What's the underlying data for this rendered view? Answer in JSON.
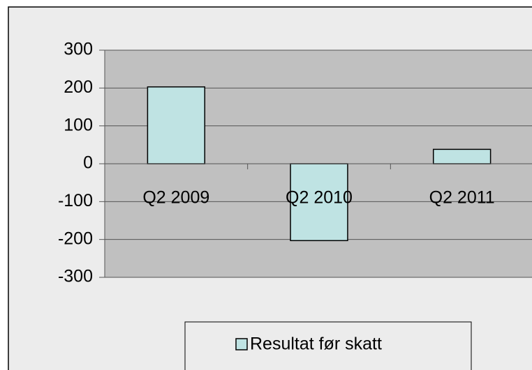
{
  "chart_data": {
    "type": "bar",
    "categories": [
      "Q2 2009",
      "Q2 2010",
      "Q2 2011"
    ],
    "series": [
      {
        "name": "Resultat før skatt",
        "color": "#bfe3e3",
        "values": [
          203,
          -203,
          38
        ]
      }
    ],
    "ylim": [
      -300,
      300
    ],
    "yticks": [
      -300,
      -200,
      -100,
      0,
      100,
      200,
      300
    ],
    "grid": true,
    "legend": "bottom"
  }
}
